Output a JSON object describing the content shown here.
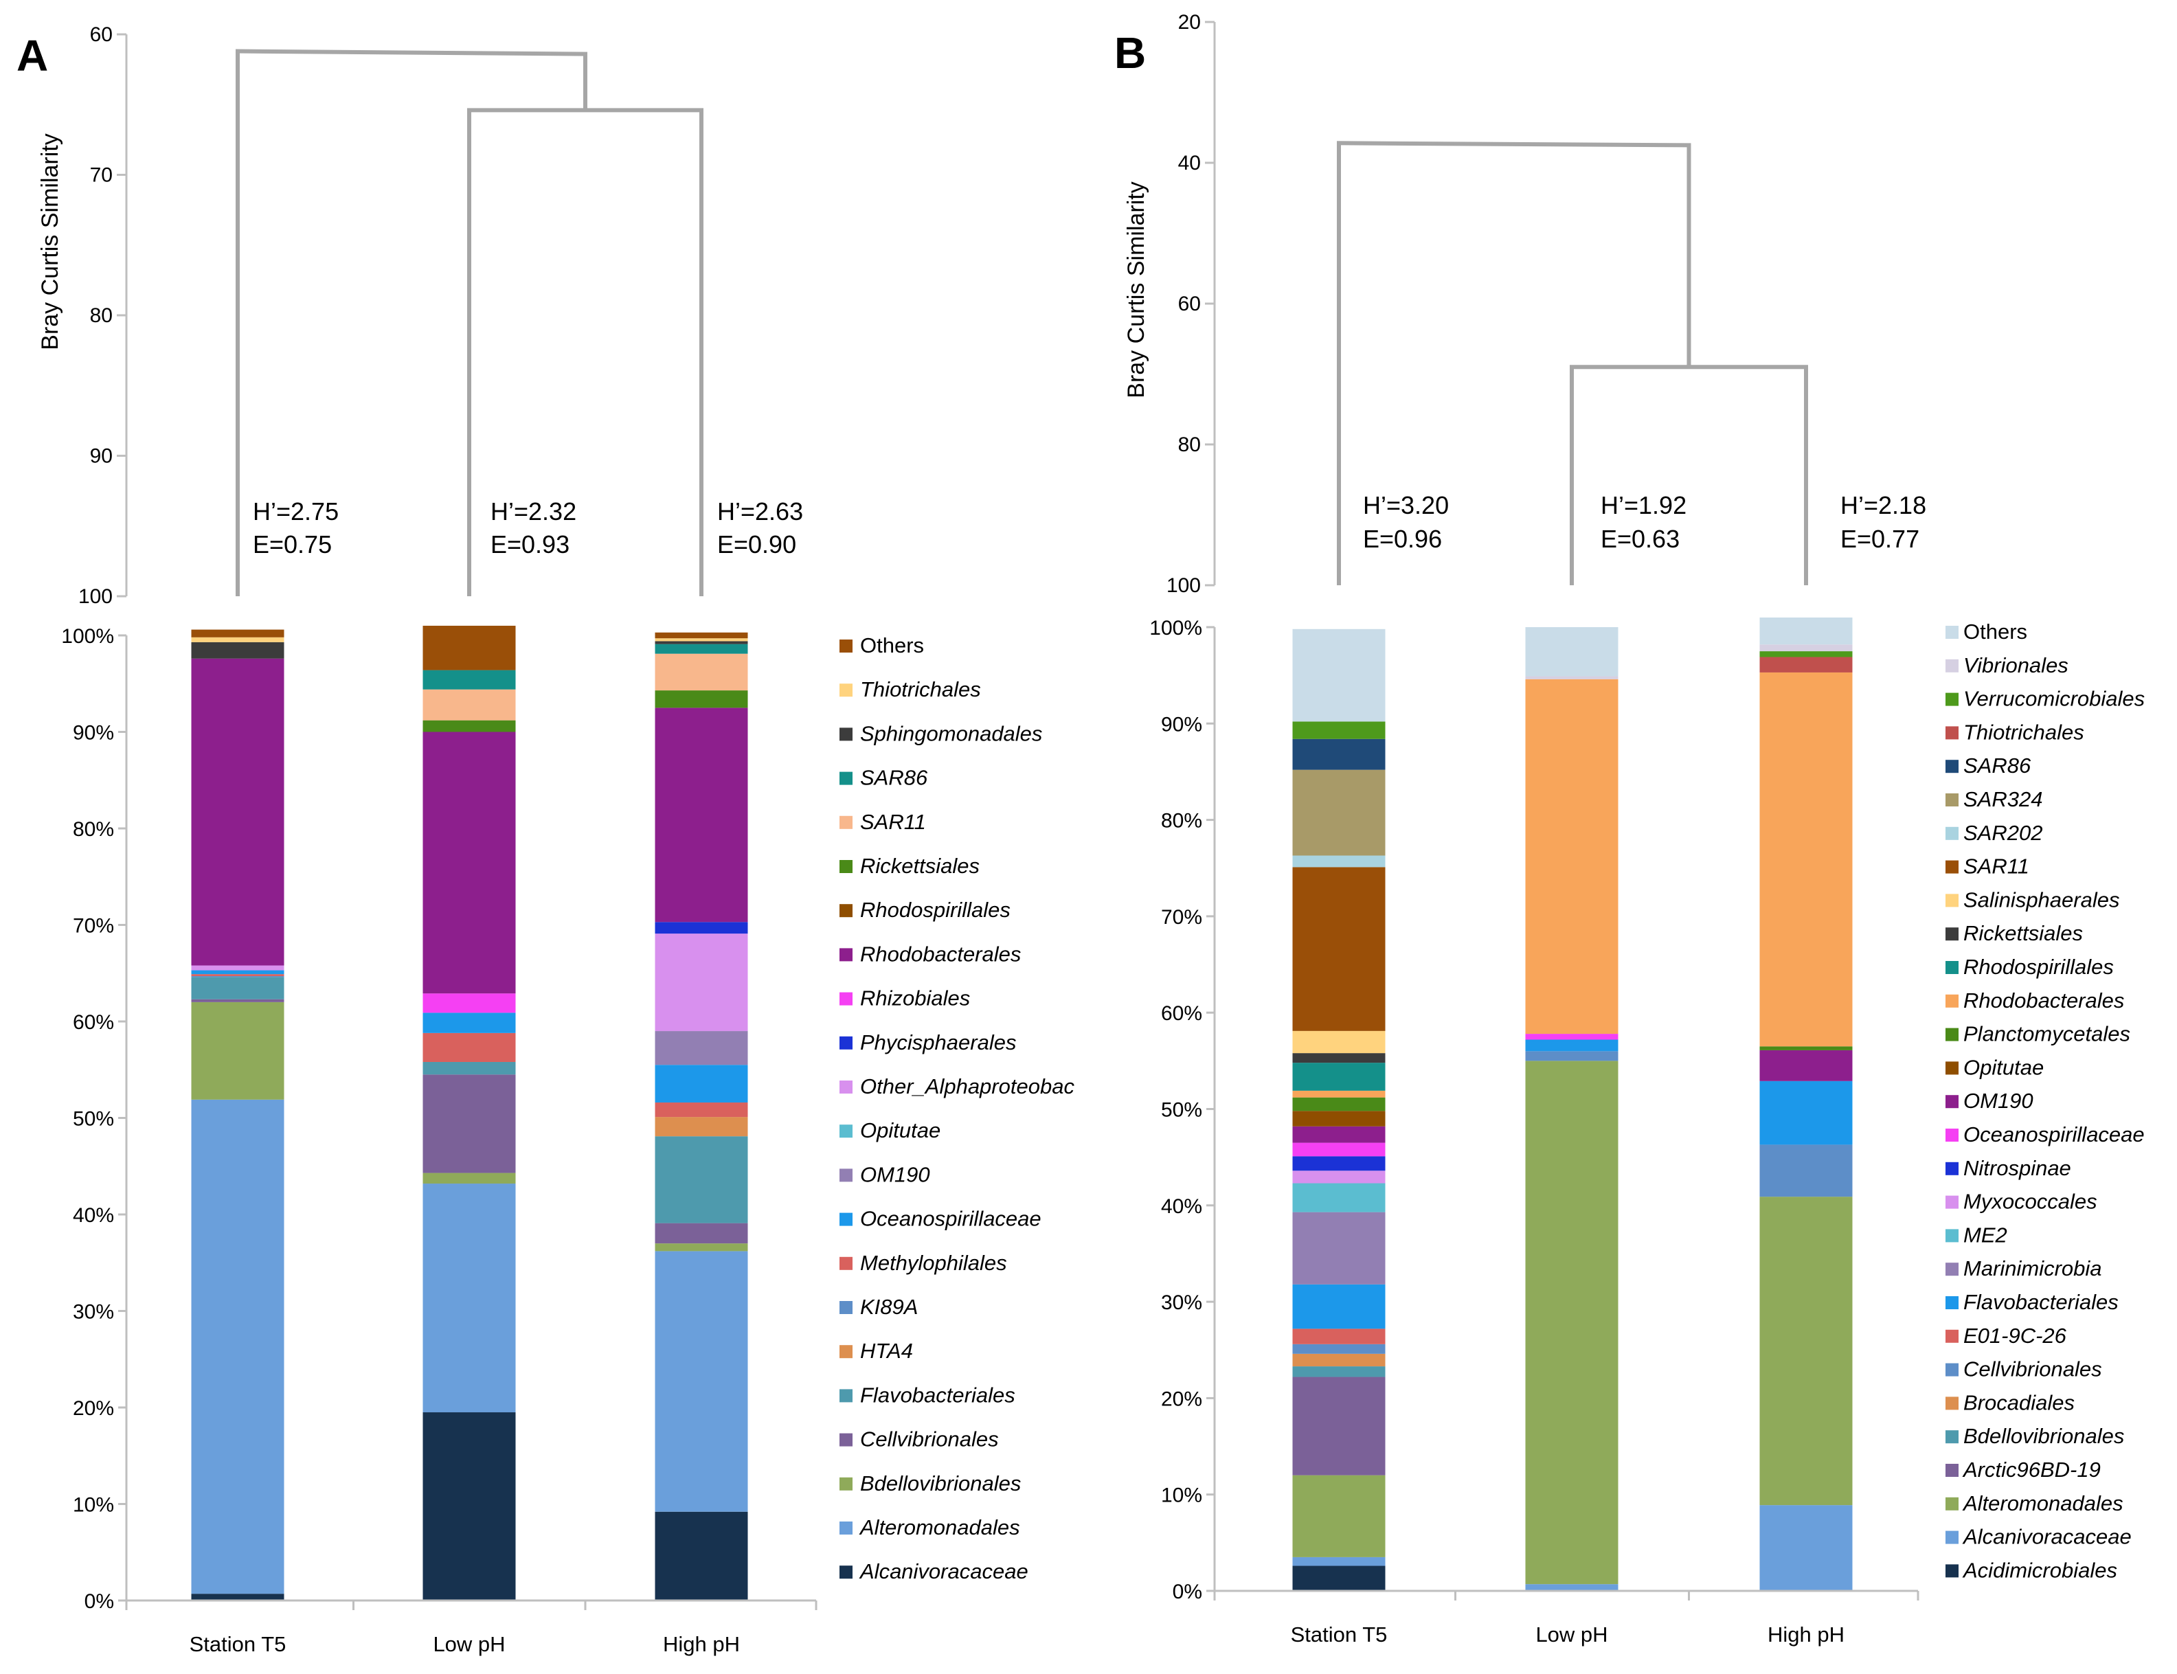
{
  "panels": [
    {
      "letter": "A",
      "dendro_axis": {
        "label": "Bray Curtis Similarity",
        "ticks": [
          60,
          70,
          80,
          90,
          100
        ],
        "range": [
          60,
          100
        ]
      },
      "dendrogram": {
        "leaves": [
          "Station T5",
          "Low pH",
          "High pH"
        ],
        "merges": [
          {
            "left": 1,
            "right": 2,
            "similarity": 65.4
          },
          {
            "left": 0,
            "right": "merge0",
            "similarity": 61.4
          },
          {
            "root_join_left": 61.2,
            "root_join_right": 61.4
          }
        ]
      },
      "diversity": [
        {
          "h": "H’=2.75",
          "e": "E=0.75"
        },
        {
          "h": "H’=2.32",
          "e": "E=0.93"
        },
        {
          "h": "H’=2.63",
          "e": "E=0.90"
        }
      ],
      "chart_data": {
        "type": "bar",
        "stacked": true,
        "title": "",
        "xlabel": "",
        "ylabel": "",
        "ylim": [
          0,
          100
        ],
        "yticks": [
          "0%",
          "10%",
          "20%",
          "30%",
          "40%",
          "50%",
          "60%",
          "70%",
          "80%",
          "90%",
          "100%"
        ],
        "categories": [
          "Station T5",
          "Low pH",
          "High pH"
        ],
        "series": [
          {
            "name": "Alcanivoracaceae",
            "italic": true,
            "color": "#17324f",
            "values": [
              0.7,
              19.5,
              9.2
            ]
          },
          {
            "name": "Alteromonadales",
            "italic": true,
            "color": "#6a9fdb",
            "values": [
              51.2,
              23.7,
              27.0
            ]
          },
          {
            "name": "Bdellovibrionales",
            "italic": true,
            "color": "#8faa5a",
            "values": [
              10.1,
              1.1,
              0.8
            ]
          },
          {
            "name": "Cellvibrionales",
            "italic": true,
            "color": "#7b6198",
            "values": [
              0.3,
              10.2,
              2.1
            ]
          },
          {
            "name": "Flavobacteriales",
            "italic": true,
            "color": "#4e9aad",
            "values": [
              2.3,
              1.3,
              9.0
            ]
          },
          {
            "name": "HTA4",
            "italic": true,
            "color": "#dd8f4f",
            "values": [
              0.0,
              0.0,
              2.0
            ]
          },
          {
            "name": "KI89A",
            "italic": true,
            "color": "#5d8ec8",
            "values": [
              0.1,
              0.0,
              0.0
            ]
          },
          {
            "name": "Methylophilales",
            "italic": true,
            "color": "#d9615d",
            "values": [
              0.2,
              3.0,
              1.5
            ]
          },
          {
            "name": "Oceanospirillaceae",
            "italic": true,
            "color": "#1c98ea",
            "values": [
              0.4,
              2.1,
              3.9
            ]
          },
          {
            "name": "OM190",
            "italic": true,
            "color": "#927fb3",
            "values": [
              0.0,
              0.0,
              3.5
            ]
          },
          {
            "name": "Opitutae",
            "italic": true,
            "color": "#5bbdd0",
            "values": [
              0.0,
              0.0,
              0.0
            ]
          },
          {
            "name": "Other_Alphaproteobac",
            "italic": true,
            "color": "#d890ee",
            "values": [
              0.5,
              0.0,
              10.1
            ]
          },
          {
            "name": "Phycisphaerales",
            "italic": true,
            "color": "#1b32d6",
            "values": [
              0.0,
              0.0,
              1.2
            ]
          },
          {
            "name": "Rhizobiales",
            "italic": true,
            "color": "#f540f3",
            "values": [
              0.0,
              2.0,
              0.0
            ]
          },
          {
            "name": "Rhodobacterales",
            "italic": true,
            "color": "#8d1f8d",
            "values": [
              31.8,
              27.1,
              22.2
            ]
          },
          {
            "name": "Rhodospirillales",
            "italic": true,
            "color": "#8f4e00",
            "values": [
              0.0,
              0.0,
              0.0
            ]
          },
          {
            "name": "Rickettsiales",
            "italic": true,
            "color": "#4a8a18",
            "values": [
              0.0,
              1.2,
              1.8
            ]
          },
          {
            "name": "SAR11",
            "italic": true,
            "color": "#f8b78c",
            "values": [
              0.0,
              3.2,
              3.8
            ]
          },
          {
            "name": "SAR86",
            "italic": true,
            "color": "#14908a",
            "values": [
              0.0,
              2.0,
              1.0
            ]
          },
          {
            "name": "Sphingomonadales",
            "italic": true,
            "color": "#3c3c3c",
            "values": [
              1.7,
              0.0,
              0.3
            ]
          },
          {
            "name": "Thiotrichales",
            "italic": true,
            "color": "#ffd37e",
            "values": [
              0.5,
              0.0,
              0.3
            ]
          },
          {
            "name": "Others",
            "italic": false,
            "color": "#9a4f08",
            "values": [
              0.8,
              4.6,
              0.6
            ]
          }
        ]
      }
    },
    {
      "letter": "B",
      "dendro_axis": {
        "label": "Bray Curtis Similarity",
        "ticks": [
          20,
          40,
          60,
          80,
          100
        ],
        "range": [
          20,
          100
        ]
      },
      "dendrogram": {
        "leaves": [
          "Station T5",
          "Low pH",
          "High pH"
        ],
        "merges": [
          {
            "left": 1,
            "right": 2,
            "similarity": 69.0
          },
          {
            "left": 0,
            "right": "merge0",
            "similarity": 37.2
          },
          {
            "root_join_left": 37.2,
            "root_join_right": 37.5
          }
        ]
      },
      "diversity": [
        {
          "h": "H’=3.20",
          "e": "E=0.96"
        },
        {
          "h": "H’=1.92",
          "e": "E=0.63"
        },
        {
          "h": "H’=2.18",
          "e": "E=0.77"
        }
      ],
      "chart_data": {
        "type": "bar",
        "stacked": true,
        "title": "",
        "xlabel": "",
        "ylabel": "",
        "ylim": [
          0,
          100
        ],
        "yticks": [
          "0%",
          "10%",
          "20%",
          "30%",
          "40%",
          "50%",
          "60%",
          "70%",
          "80%",
          "90%",
          "100%"
        ],
        "categories": [
          "Station T5",
          "Low pH",
          "High pH"
        ],
        "series": [
          {
            "name": "Acidimicrobiales",
            "italic": true,
            "color": "#17324f",
            "values": [
              2.6,
              0.0,
              0.0
            ]
          },
          {
            "name": "Alcanivoracaceae",
            "italic": true,
            "color": "#6a9fdb",
            "values": [
              0.9,
              0.7,
              8.9
            ]
          },
          {
            "name": "Alteromonadales",
            "italic": true,
            "color": "#8faa5a",
            "values": [
              8.5,
              54.3,
              32.0
            ]
          },
          {
            "name": "Arctic96BD-19",
            "italic": true,
            "color": "#7b6198",
            "values": [
              10.2,
              0.0,
              0.0
            ]
          },
          {
            "name": "Bdellovibrionales",
            "italic": true,
            "color": "#4e9aad",
            "values": [
              1.1,
              0.0,
              0.0
            ]
          },
          {
            "name": "Brocadiales",
            "italic": true,
            "color": "#dd8f4f",
            "values": [
              1.3,
              0.0,
              0.0
            ]
          },
          {
            "name": "Cellvibrionales",
            "italic": true,
            "color": "#5d8ec8",
            "values": [
              1.0,
              1.0,
              5.4
            ]
          },
          {
            "name": "E01-9C-26",
            "italic": true,
            "color": "#d9615d",
            "values": [
              1.6,
              0.0,
              0.0
            ]
          },
          {
            "name": "Flavobacteriales",
            "italic": true,
            "color": "#1c98ea",
            "values": [
              4.6,
              1.2,
              6.6
            ]
          },
          {
            "name": "Marinimicrobia",
            "italic": true,
            "color": "#927fb3",
            "values": [
              7.5,
              0.0,
              0.0
            ]
          },
          {
            "name": "ME2",
            "italic": true,
            "color": "#5bbdd0",
            "values": [
              3.0,
              0.0,
              0.0
            ]
          },
          {
            "name": "Myxococcales",
            "italic": true,
            "color": "#d890ee",
            "values": [
              1.3,
              0.0,
              0.0
            ]
          },
          {
            "name": "Nitrospinae",
            "italic": true,
            "color": "#1b32d6",
            "values": [
              1.5,
              0.0,
              0.0
            ]
          },
          {
            "name": "Oceanospirillaceae",
            "italic": true,
            "color": "#f540f3",
            "values": [
              1.4,
              0.6,
              0.0
            ]
          },
          {
            "name": "OM190",
            "italic": true,
            "color": "#8d1f8d",
            "values": [
              1.7,
              0.0,
              3.2
            ]
          },
          {
            "name": "Opitutae",
            "italic": true,
            "color": "#8f4e00",
            "values": [
              1.6,
              0.0,
              0.0
            ]
          },
          {
            "name": "Planctomycetales",
            "italic": true,
            "color": "#4a8a18",
            "values": [
              1.4,
              0.0,
              0.4
            ]
          },
          {
            "name": "Rhodobacterales",
            "italic": true,
            "color": "#f8a55a",
            "values": [
              0.7,
              36.8,
              38.8
            ]
          },
          {
            "name": "Rhodospirillales",
            "italic": true,
            "color": "#14908a",
            "values": [
              2.9,
              0.0,
              0.0
            ]
          },
          {
            "name": "Rickettsiales",
            "italic": true,
            "color": "#3c3c3c",
            "values": [
              1.0,
              0.0,
              0.0
            ]
          },
          {
            "name": "Salinisphaerales",
            "italic": true,
            "color": "#ffd37e",
            "values": [
              2.3,
              0.0,
              0.0
            ]
          },
          {
            "name": "SAR11",
            "italic": true,
            "color": "#9a4f08",
            "values": [
              17.0,
              0.0,
              0.0
            ]
          },
          {
            "name": "SAR202",
            "italic": true,
            "color": "#a9d3e0",
            "values": [
              1.2,
              0.0,
              0.0
            ]
          },
          {
            "name": "SAR324",
            "italic": true,
            "color": "#a89a68",
            "values": [
              8.9,
              0.0,
              0.0
            ]
          },
          {
            "name": "SAR86",
            "italic": true,
            "color": "#1f4a78",
            "values": [
              3.2,
              0.0,
              0.0
            ]
          },
          {
            "name": "Thiotrichales",
            "italic": true,
            "color": "#c0504d",
            "values": [
              0.0,
              0.0,
              1.6
            ]
          },
          {
            "name": "Verrucomicrobiales",
            "italic": true,
            "color": "#4e9a1c",
            "values": [
              1.8,
              0.0,
              0.6
            ]
          },
          {
            "name": "Vibrionales",
            "italic": true,
            "color": "#d6d0e2",
            "values": [
              0.0,
              0.3,
              0.7
            ]
          },
          {
            "name": "Others",
            "italic": false,
            "color": "#c9dce8",
            "values": [
              9.6,
              5.1,
              2.8
            ]
          }
        ]
      }
    }
  ]
}
